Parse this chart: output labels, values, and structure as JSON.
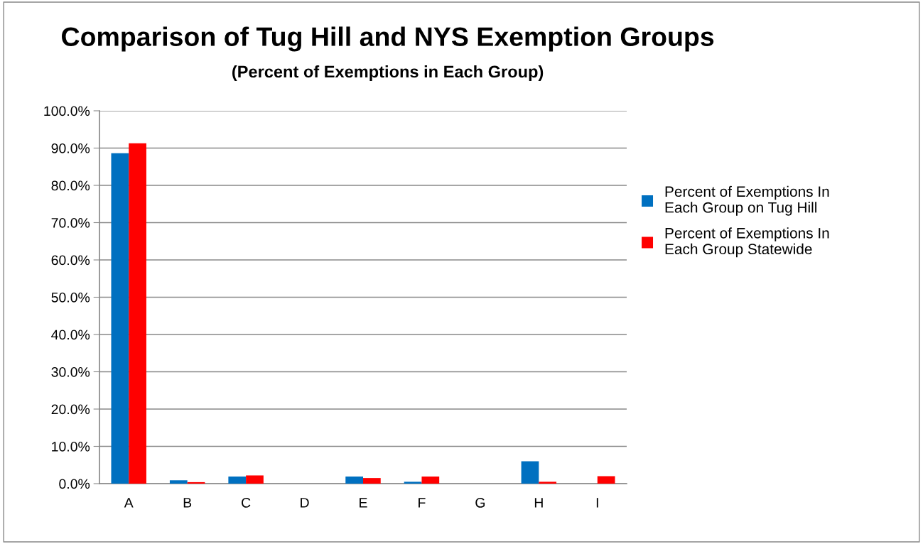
{
  "chart_data": {
    "type": "bar",
    "title": "Comparison of Tug Hill and NYS Exemption Groups",
    "subtitle": "(Percent of Exemptions in Each Group)",
    "categories": [
      "A",
      "B",
      "C",
      "D",
      "E",
      "F",
      "G",
      "H",
      "I"
    ],
    "series": [
      {
        "name": "Percent of Exemptions In Each Group on Tug Hill",
        "color": "#0070c0",
        "values": [
          88.6,
          0.9,
          1.9,
          0,
          1.9,
          0.5,
          0,
          6.0,
          0
        ]
      },
      {
        "name": "Percent of Exemptions In Each Group Statewide",
        "color": "#ff0000",
        "values": [
          91.3,
          0.4,
          2.2,
          0,
          1.5,
          1.9,
          0,
          0.5,
          2.0
        ]
      }
    ],
    "ylim": [
      0,
      100
    ],
    "yticks": [
      {
        "value": 0,
        "label": "0.0%"
      },
      {
        "value": 10,
        "label": "10.0%"
      },
      {
        "value": 20,
        "label": "20.0%"
      },
      {
        "value": 30,
        "label": "30.0%"
      },
      {
        "value": 40,
        "label": "40.0%"
      },
      {
        "value": 50,
        "label": "50.0%"
      },
      {
        "value": 60,
        "label": "60.0%"
      },
      {
        "value": 70,
        "label": "70.0%"
      },
      {
        "value": 80,
        "label": "80.0%"
      },
      {
        "value": 90,
        "label": "90.0%"
      },
      {
        "value": 100,
        "label": "100.0%"
      }
    ],
    "grid": "y",
    "legend": "right"
  }
}
